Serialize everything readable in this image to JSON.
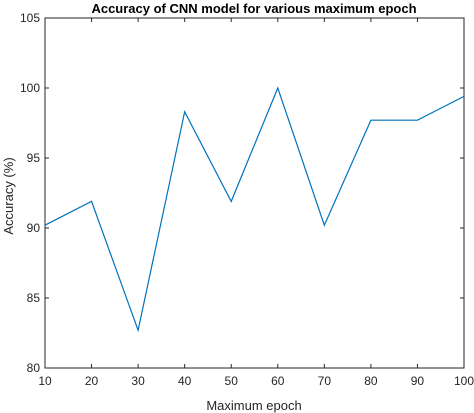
{
  "chart_data": {
    "type": "line",
    "title": "Accuracy of CNN model for various maximum epoch",
    "xlabel": "Maximum epoch",
    "ylabel": "Accuracy (%)",
    "xlim": [
      10,
      100
    ],
    "ylim": [
      80,
      105
    ],
    "x_ticks": [
      10,
      20,
      30,
      40,
      50,
      60,
      70,
      80,
      90,
      100
    ],
    "y_ticks": [
      80,
      85,
      90,
      95,
      100,
      105
    ],
    "x": [
      10,
      20,
      30,
      40,
      50,
      60,
      70,
      80,
      90,
      100
    ],
    "series": [
      {
        "values": [
          90.2,
          91.9,
          82.7,
          98.3,
          91.9,
          100.0,
          90.2,
          97.7,
          97.7,
          99.4
        ],
        "color": "#0072bd"
      }
    ],
    "grid": false,
    "legend": "none"
  }
}
